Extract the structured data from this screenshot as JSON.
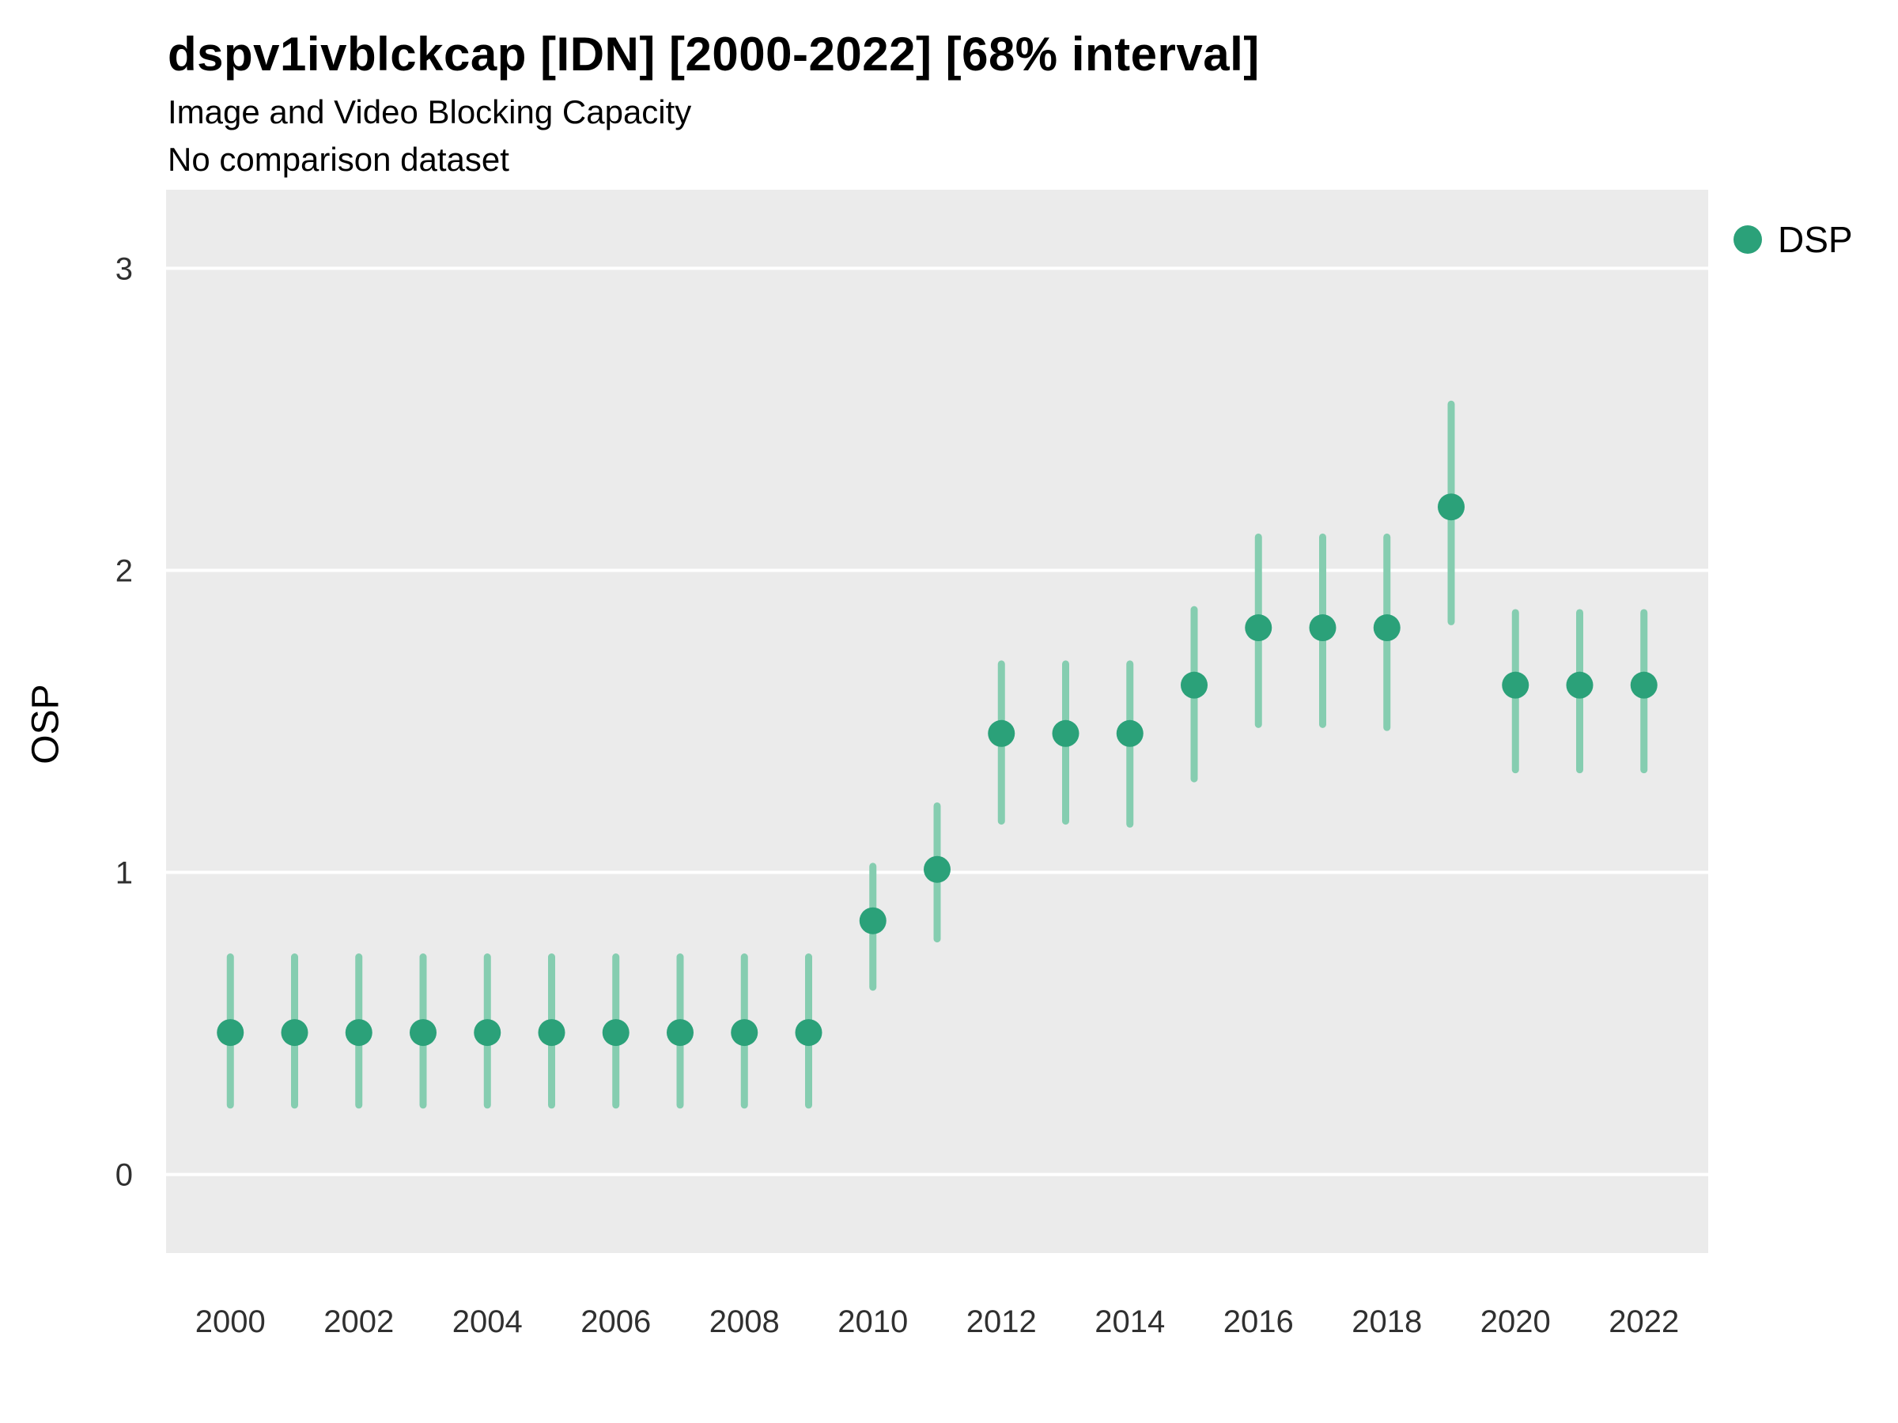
{
  "chart_data": {
    "type": "scatter",
    "title": "dspv1ivblckcap [IDN] [2000-2022] [68% interval]",
    "subtitle": "Image and Video Blocking Capacity",
    "note": "No comparison dataset",
    "xlabel": "",
    "ylabel": "OSP",
    "legend_position": "right",
    "legend": [
      {
        "label": "DSP",
        "color": "#2BA179"
      }
    ],
    "grid": "horizontal-only",
    "xlim": [
      1999,
      2023
    ],
    "ylim": [
      -0.26,
      3.26
    ],
    "xticks": [
      2000,
      2002,
      2004,
      2006,
      2008,
      2010,
      2012,
      2014,
      2016,
      2018,
      2020,
      2022
    ],
    "yticks": [
      0,
      1,
      2,
      3
    ],
    "x": [
      2000,
      2001,
      2002,
      2003,
      2004,
      2005,
      2006,
      2007,
      2008,
      2009,
      2010,
      2011,
      2012,
      2013,
      2014,
      2015,
      2016,
      2017,
      2018,
      2019,
      2020,
      2021,
      2022
    ],
    "series": [
      {
        "name": "DSP",
        "values": [
          0.47,
          0.47,
          0.47,
          0.47,
          0.47,
          0.47,
          0.47,
          0.47,
          0.47,
          0.47,
          0.84,
          1.01,
          1.46,
          1.46,
          1.46,
          1.62,
          1.81,
          1.81,
          1.81,
          2.21,
          1.62,
          1.62,
          1.62
        ],
        "lower": [
          0.23,
          0.23,
          0.23,
          0.23,
          0.23,
          0.23,
          0.23,
          0.23,
          0.23,
          0.23,
          0.62,
          0.78,
          1.17,
          1.17,
          1.16,
          1.31,
          1.49,
          1.49,
          1.48,
          1.83,
          1.34,
          1.34,
          1.34
        ],
        "upper": [
          0.72,
          0.72,
          0.72,
          0.72,
          0.72,
          0.72,
          0.72,
          0.72,
          0.72,
          0.72,
          1.02,
          1.22,
          1.69,
          1.69,
          1.69,
          1.87,
          2.11,
          2.11,
          2.11,
          2.55,
          1.86,
          1.86,
          1.86
        ]
      }
    ],
    "colors": {
      "point": "#2BA179",
      "interval": "#85CDB0",
      "panel": "#EBEBEB",
      "grid": "#FFFFFF",
      "tick_text": "#303030"
    }
  }
}
